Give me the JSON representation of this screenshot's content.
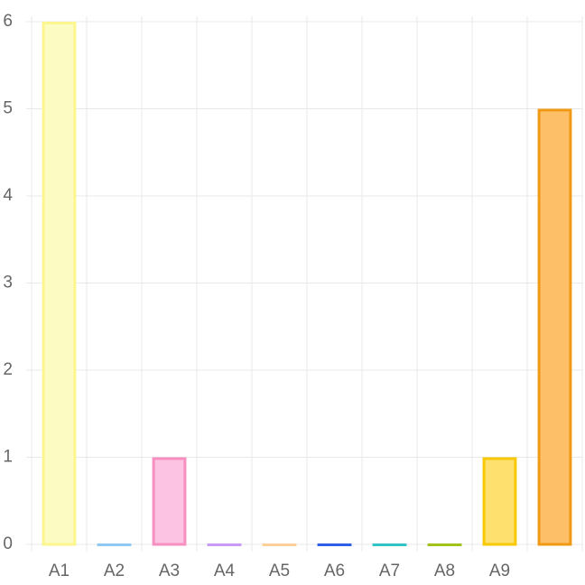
{
  "chart_data": {
    "type": "bar",
    "categories": [
      "A1",
      "A2",
      "A3",
      "A4",
      "A5",
      "A6",
      "A7",
      "A8",
      "A9",
      null
    ],
    "values": [
      6,
      0,
      1,
      0,
      0,
      0,
      0,
      0,
      1,
      5
    ],
    "colors": [
      "#fcfbc2",
      "#a9d3f6",
      "#fcc4e2",
      "#d6b3f8",
      "#fddcb2",
      "#2d5fe8",
      "#33c4c8",
      "#a2c21a",
      "#fde06e",
      "#fdbf68"
    ],
    "border_colors": [
      "#fbf68e",
      "#90c8f4",
      "#f78fc0",
      "#c99af5",
      "#fdcf99",
      "#2d5fe8",
      "#33c4c8",
      "#a2c21a",
      "#f8c800",
      "#f09a13"
    ],
    "ylim": [
      0,
      6
    ],
    "yticks": [
      0,
      1,
      2,
      3,
      4,
      5,
      6
    ],
    "grid": true
  }
}
